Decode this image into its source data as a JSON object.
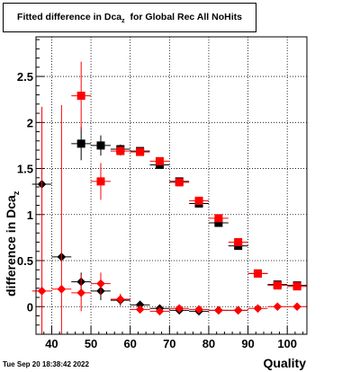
{
  "title": "Fitted difference in Dca",
  "title_sub": "z",
  "title_rest": "  for Global Rec All NoHits",
  "ylabel": "difference in Dca",
  "ylabel_sub": "z",
  "xlabel": "Quality",
  "timestamp": "Tue Sep 20 18:38:42 2022",
  "colors": {
    "black": "#000000",
    "red": "#ff0000",
    "grid": "#000000"
  },
  "chart_data": {
    "type": "scatter",
    "xlim": [
      36,
      105
    ],
    "ylim": [
      -0.3,
      2.93
    ],
    "xticks": [
      40,
      50,
      60,
      70,
      80,
      90,
      100
    ],
    "yticks": [
      0,
      0.5,
      1,
      1.5,
      2,
      2.5
    ],
    "grid": true,
    "series": [
      {
        "color": "#000000",
        "marker": "square",
        "points": [
          {
            "x": 47.5,
            "y": 1.77,
            "ey": 0.18
          },
          {
            "x": 52.5,
            "y": 1.75,
            "ey": 0.11
          },
          {
            "x": 57.5,
            "y": 1.71,
            "ey": 0.05
          },
          {
            "x": 62.5,
            "y": 1.69,
            "ey": 0.03
          },
          {
            "x": 67.5,
            "y": 1.54,
            "ey": 0.03
          },
          {
            "x": 72.5,
            "y": 1.36,
            "ey": 0.02
          },
          {
            "x": 77.5,
            "y": 1.12,
            "ey": 0.02
          },
          {
            "x": 82.5,
            "y": 0.91,
            "ey": 0.02
          },
          {
            "x": 87.5,
            "y": 0.66,
            "ey": 0.02
          },
          {
            "x": 92.5,
            "y": 0.36,
            "ey": 0.02
          },
          {
            "x": 97.5,
            "y": 0.24,
            "ey": 0.01
          },
          {
            "x": 102.5,
            "y": 0.23,
            "ey": 0.01
          }
        ]
      },
      {
        "color": "#ff0000",
        "marker": "square",
        "points": [
          {
            "x": 47.5,
            "y": 2.29,
            "ey": 0.37
          },
          {
            "x": 52.5,
            "y": 1.36,
            "ey": 0.2
          },
          {
            "x": 57.5,
            "y": 1.69,
            "ey": 0.05
          },
          {
            "x": 62.5,
            "y": 1.68,
            "ey": 0.03
          },
          {
            "x": 67.5,
            "y": 1.58,
            "ey": 0.03
          },
          {
            "x": 72.5,
            "y": 1.35,
            "ey": 0.02
          },
          {
            "x": 77.5,
            "y": 1.15,
            "ey": 0.02
          },
          {
            "x": 82.5,
            "y": 0.96,
            "ey": 0.02
          },
          {
            "x": 87.5,
            "y": 0.7,
            "ey": 0.02
          },
          {
            "x": 92.5,
            "y": 0.36,
            "ey": 0.02
          },
          {
            "x": 97.5,
            "y": 0.23,
            "ey": 0.01
          },
          {
            "x": 102.5,
            "y": 0.22,
            "ey": 0.01
          }
        ]
      },
      {
        "color": "#000000",
        "marker": "diamond",
        "points": [
          {
            "x": 37.5,
            "y": 1.33,
            "ey": 0.0
          },
          {
            "x": 42.5,
            "y": 0.54,
            "ey": 0.0
          },
          {
            "x": 47.5,
            "y": 0.27,
            "ey": 0.1
          },
          {
            "x": 52.5,
            "y": 0.17,
            "ey": 0.1
          },
          {
            "x": 57.5,
            "y": 0.07,
            "ey": 0.06
          },
          {
            "x": 62.5,
            "y": 0.02,
            "ey": 0.03
          },
          {
            "x": 67.5,
            "y": -0.02,
            "ey": 0.03
          },
          {
            "x": 72.5,
            "y": -0.04,
            "ey": 0.02
          },
          {
            "x": 77.5,
            "y": -0.05,
            "ey": 0.02
          },
          {
            "x": 82.5,
            "y": -0.04,
            "ey": 0.02
          },
          {
            "x": 87.5,
            "y": -0.04,
            "ey": 0.02
          }
        ]
      },
      {
        "color": "#ff0000",
        "marker": "diamond",
        "points": [
          {
            "x": 37.5,
            "y": 0.17,
            "ey": 2.0
          },
          {
            "x": 42.5,
            "y": 0.19,
            "ey": 2.0
          },
          {
            "x": 47.5,
            "y": 0.15,
            "ey": 0.2
          },
          {
            "x": 52.5,
            "y": 0.25,
            "ey": 0.12
          },
          {
            "x": 57.5,
            "y": 0.08,
            "ey": 0.06
          },
          {
            "x": 62.5,
            "y": -0.03,
            "ey": 0.03
          },
          {
            "x": 67.5,
            "y": -0.05,
            "ey": 0.03
          },
          {
            "x": 72.5,
            "y": -0.02,
            "ey": 0.02
          },
          {
            "x": 77.5,
            "y": -0.03,
            "ey": 0.02
          },
          {
            "x": 82.5,
            "y": -0.04,
            "ey": 0.02
          },
          {
            "x": 87.5,
            "y": -0.04,
            "ey": 0.02
          },
          {
            "x": 92.5,
            "y": -0.02,
            "ey": 0.02
          },
          {
            "x": 97.5,
            "y": 0.0,
            "ey": 0.01
          },
          {
            "x": 102.5,
            "y": 0.0,
            "ey": 0.01
          }
        ]
      }
    ]
  }
}
